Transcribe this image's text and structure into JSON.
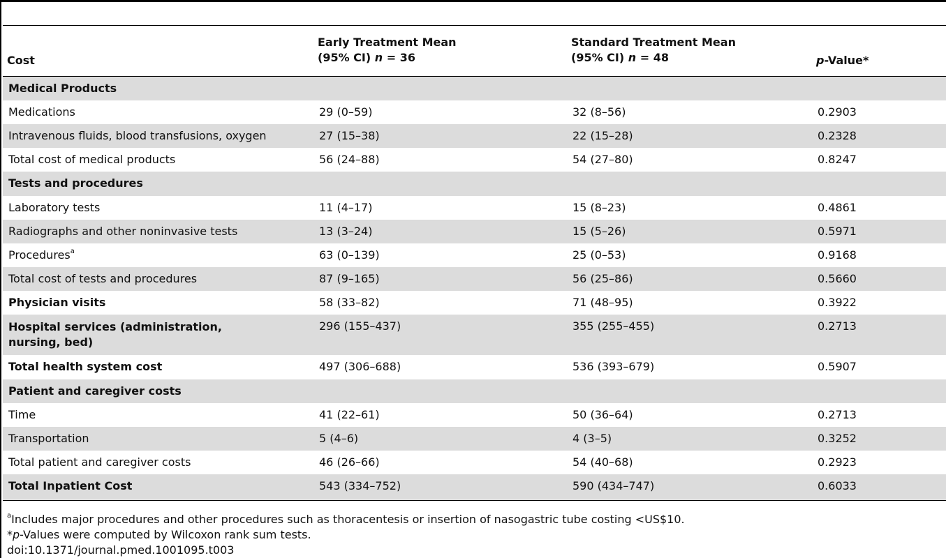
{
  "table": {
    "header": {
      "cost": "Cost",
      "early_line1": "Early Treatment Mean",
      "early_line2_prefix": "(95% CI) ",
      "early_n_var": "n",
      "early_n_val": " = 36",
      "standard_line1": "Standard Treatment Mean",
      "standard_line2_prefix": "(95% CI) ",
      "standard_n_var": "n",
      "standard_n_val": " = 48",
      "pvalue_var": "p",
      "pvalue_rest": "-Value*"
    },
    "rows": [
      {
        "label": "Medical Products",
        "early": "",
        "standard": "",
        "p": ""
      },
      {
        "label": "Medications",
        "early": "29 (0–59)",
        "standard": "32 (8–56)",
        "p": "0.2903"
      },
      {
        "label": "Intravenous fluids, blood transfusions, oxygen",
        "early": "27 (15–38)",
        "standard": "22 (15–28)",
        "p": "0.2328"
      },
      {
        "label": "Total cost of medical products",
        "early": "56 (24–88)",
        "standard": "54 (27–80)",
        "p": "0.8247"
      },
      {
        "label": "Tests and procedures",
        "early": "",
        "standard": "",
        "p": ""
      },
      {
        "label": "Laboratory tests",
        "early": "11 (4–17)",
        "standard": "15 (8–23)",
        "p": "0.4861"
      },
      {
        "label": "Radiographs and other noninvasive tests",
        "early": "13 (3–24)",
        "standard": "15 (5–26)",
        "p": "0.5971"
      },
      {
        "label": "Procedures",
        "label_sup": "a",
        "early": "63 (0–139)",
        "standard": "25 (0–53)",
        "p": "0.9168"
      },
      {
        "label": "Total cost of tests and procedures",
        "early": "87 (9–165)",
        "standard": "56 (25–86)",
        "p": "0.5660"
      },
      {
        "label": "Physician visits",
        "early": "58 (33–82)",
        "standard": "71 (48–95)",
        "p": "0.3922"
      },
      {
        "label": "Hospital services (administration, nursing, bed)",
        "early": "296 (155–437)",
        "standard": "355 (255–455)",
        "p": "0.2713"
      },
      {
        "label": "Total health system cost",
        "early": "497 (306–688)",
        "standard": "536 (393–679)",
        "p": "0.5907"
      },
      {
        "label": "Patient and caregiver costs",
        "early": "",
        "standard": "",
        "p": ""
      },
      {
        "label": "Time",
        "early": "41 (22–61)",
        "standard": "50 (36–64)",
        "p": "0.2713"
      },
      {
        "label": "Transportation",
        "early": "5 (4–6)",
        "standard": "4 (3–5)",
        "p": "0.3252"
      },
      {
        "label": "Total patient and caregiver costs",
        "early": "46 (26–66)",
        "standard": "54 (40–68)",
        "p": "0.2923"
      },
      {
        "label": "Total Inpatient Cost",
        "early": "543 (334–752)",
        "standard": "590 (434–747)",
        "p": "0.6033"
      }
    ]
  },
  "footnotes": {
    "note_a_sup": "a",
    "note_a": "Includes major procedures and other procedures such as thoracentesis or insertion of nasogastric tube costing <US$10.",
    "note_p_var": "p",
    "note_p": "-Values were computed by Wilcoxon rank sum tests.",
    "note_p_prefix": "*",
    "doi": "doi:10.1371/journal.pmed.1001095.t003"
  }
}
